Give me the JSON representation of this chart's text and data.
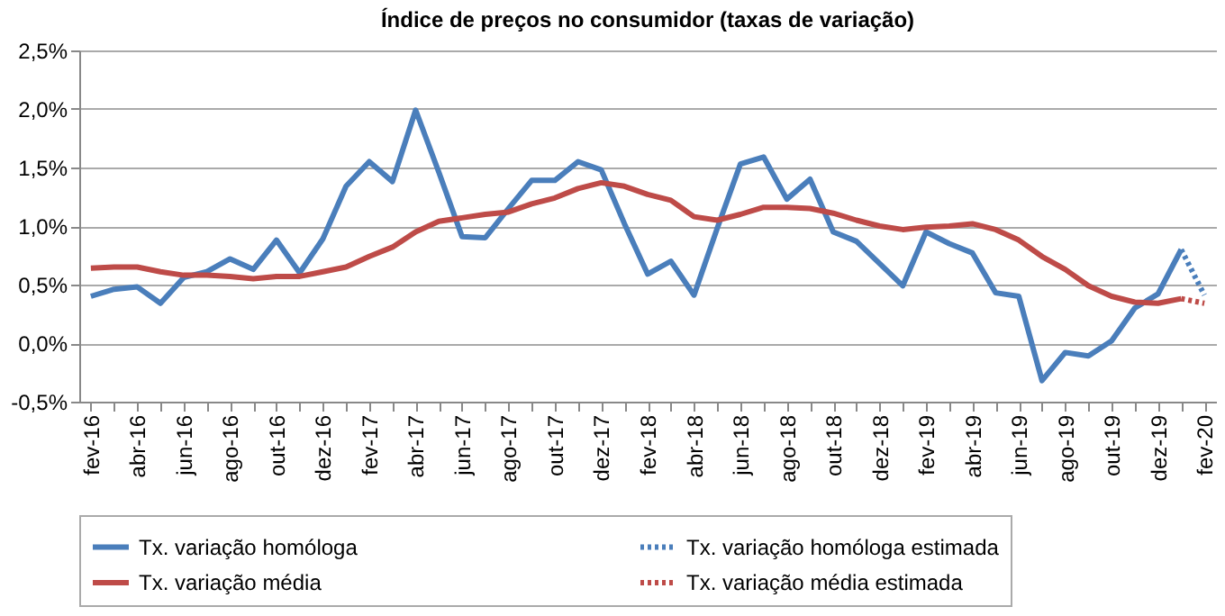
{
  "chart_data": {
    "type": "line",
    "title": "Índice de preços no consumidor  (taxas  de variação)",
    "categories": [
      "fev-16",
      null,
      "abr-16",
      null,
      "jun-16",
      null,
      "ago-16",
      null,
      "out-16",
      null,
      "dez-16",
      null,
      "fev-17",
      null,
      "abr-17",
      null,
      "jun-17",
      null,
      "ago-17",
      null,
      "out-17",
      null,
      "dez-17",
      null,
      "fev-18",
      null,
      "abr-18",
      null,
      "jun-18",
      null,
      "ago-18",
      null,
      "out-18",
      null,
      "dez-18",
      null,
      "fev-19",
      null,
      "abr-19",
      null,
      "jun-19",
      null,
      "ago-19",
      null,
      "out-19",
      null,
      "dez-19",
      null,
      "fev-20"
    ],
    "series": [
      {
        "name": "Tx. variação homóloga",
        "color": "#4a7ebb",
        "line_style": "solid",
        "values": [
          0.4,
          0.46,
          0.48,
          0.34,
          0.56,
          0.61,
          0.72,
          0.63,
          0.88,
          0.6,
          0.89,
          1.34,
          1.55,
          1.38,
          1.99,
          1.46,
          0.91,
          0.9,
          1.15,
          1.39,
          1.39,
          1.55,
          1.48,
          1.02,
          0.59,
          0.7,
          0.41,
          0.98,
          1.53,
          1.59,
          1.23,
          1.4,
          0.95,
          0.87,
          0.68,
          0.49,
          0.95,
          0.85,
          0.77,
          0.43,
          0.4,
          -0.32,
          -0.08,
          -0.11,
          0.02,
          0.3,
          0.42,
          0.8,
          null
        ]
      },
      {
        "name": "Tx. variação homóloga estimada",
        "color": "#4a7ebb",
        "line_style": "dotted",
        "values": [
          null,
          null,
          null,
          null,
          null,
          null,
          null,
          null,
          null,
          null,
          null,
          null,
          null,
          null,
          null,
          null,
          null,
          null,
          null,
          null,
          null,
          null,
          null,
          null,
          null,
          null,
          null,
          null,
          null,
          null,
          null,
          null,
          null,
          null,
          null,
          null,
          null,
          null,
          null,
          null,
          null,
          null,
          null,
          null,
          null,
          null,
          null,
          0.8,
          0.41
        ]
      },
      {
        "name": "Tx. variação média",
        "color": "#be4b48",
        "line_style": "solid",
        "values": [
          0.64,
          0.65,
          0.65,
          0.61,
          0.58,
          0.58,
          0.57,
          0.55,
          0.57,
          0.57,
          0.61,
          0.65,
          0.74,
          0.82,
          0.95,
          1.04,
          1.07,
          1.1,
          1.12,
          1.19,
          1.24,
          1.32,
          1.37,
          1.34,
          1.27,
          1.22,
          1.08,
          1.05,
          1.1,
          1.16,
          1.16,
          1.15,
          1.11,
          1.05,
          1.0,
          0.97,
          0.99,
          1.0,
          1.02,
          0.97,
          0.88,
          0.74,
          0.63,
          0.49,
          0.4,
          0.35,
          0.34,
          0.38,
          null
        ]
      },
      {
        "name": "Tx. variação média  estimada",
        "color": "#be4b48",
        "line_style": "dotted",
        "values": [
          null,
          null,
          null,
          null,
          null,
          null,
          null,
          null,
          null,
          null,
          null,
          null,
          null,
          null,
          null,
          null,
          null,
          null,
          null,
          null,
          null,
          null,
          null,
          null,
          null,
          null,
          null,
          null,
          null,
          null,
          null,
          null,
          null,
          null,
          null,
          null,
          null,
          null,
          null,
          null,
          null,
          null,
          null,
          null,
          null,
          null,
          null,
          0.38,
          0.34
        ]
      }
    ],
    "ylim": [
      -0.5,
      2.5
    ],
    "yticks": [
      {
        "value": -0.5,
        "label": "-0,5%"
      },
      {
        "value": 0,
        "label": "0,0%"
      },
      {
        "value": 0.5,
        "label": "0,5%"
      },
      {
        "value": 1,
        "label": "1,0%"
      },
      {
        "value": 1.5,
        "label": "1,5%"
      },
      {
        "value": 2,
        "label": "2,0%"
      },
      {
        "value": 2.5,
        "label": "2,5%"
      }
    ],
    "grid": "y",
    "legend": "bottom",
    "marker": "none"
  }
}
